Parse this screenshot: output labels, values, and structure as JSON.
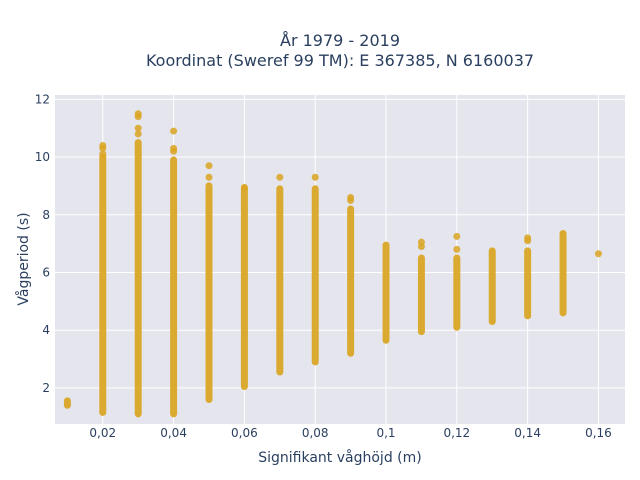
{
  "chart_data": {
    "type": "scatter",
    "title": [
      "År 1979 - 2019",
      "Koordinat (Sweref 99 TM): E 367385, N 6160037"
    ],
    "xlabel": "Signifikant våghöjd (m)",
    "ylabel": "Vågperiod (s)",
    "xlim": [
      0.0065,
      0.1675
    ],
    "ylim": [
      0.75,
      12.15
    ],
    "grid": true,
    "color": "#DAA520",
    "xticks": [
      {
        "value": 0.02,
        "label": "0,02"
      },
      {
        "value": 0.04,
        "label": "0,04"
      },
      {
        "value": 0.06,
        "label": "0,06"
      },
      {
        "value": 0.08,
        "label": "0,08"
      },
      {
        "value": 0.1,
        "label": "0,1"
      },
      {
        "value": 0.12,
        "label": "0,12"
      },
      {
        "value": 0.14,
        "label": "0,14"
      },
      {
        "value": 0.16,
        "label": "0,16"
      }
    ],
    "yticks": [
      {
        "value": 2,
        "label": "2"
      },
      {
        "value": 4,
        "label": "4"
      },
      {
        "value": 6,
        "label": "6"
      },
      {
        "value": 8,
        "label": "8"
      },
      {
        "value": 10,
        "label": "10"
      },
      {
        "value": 12,
        "label": "12"
      }
    ],
    "columns": [
      {
        "x": 0.01,
        "ymin": 1.4,
        "ymax": 1.55,
        "outliers": []
      },
      {
        "x": 0.02,
        "ymin": 1.15,
        "ymax": 10.0,
        "outliers": [
          10.4,
          10.3,
          10.1
        ]
      },
      {
        "x": 0.03,
        "ymin": 1.1,
        "ymax": 10.5,
        "outliers": [
          11.5,
          11.4,
          11.0,
          10.8
        ]
      },
      {
        "x": 0.04,
        "ymin": 1.1,
        "ymax": 9.9,
        "outliers": [
          10.9,
          10.3,
          10.2
        ]
      },
      {
        "x": 0.05,
        "ymin": 1.6,
        "ymax": 9.0,
        "outliers": [
          9.7,
          9.3
        ]
      },
      {
        "x": 0.06,
        "ymin": 2.05,
        "ymax": 8.9,
        "outliers": [
          8.95
        ]
      },
      {
        "x": 0.07,
        "ymin": 2.55,
        "ymax": 8.9,
        "outliers": [
          9.3
        ]
      },
      {
        "x": 0.08,
        "ymin": 2.9,
        "ymax": 8.9,
        "outliers": [
          9.3
        ]
      },
      {
        "x": 0.09,
        "ymin": 3.2,
        "ymax": 8.2,
        "outliers": [
          8.6,
          8.5
        ]
      },
      {
        "x": 0.1,
        "ymin": 3.65,
        "ymax": 6.95,
        "outliers": []
      },
      {
        "x": 0.11,
        "ymin": 3.95,
        "ymax": 6.5,
        "outliers": [
          7.05,
          6.9
        ]
      },
      {
        "x": 0.12,
        "ymin": 4.1,
        "ymax": 6.5,
        "outliers": [
          7.25,
          6.8
        ]
      },
      {
        "x": 0.13,
        "ymin": 4.3,
        "ymax": 6.75,
        "outliers": []
      },
      {
        "x": 0.14,
        "ymin": 4.5,
        "ymax": 6.75,
        "outliers": [
          7.2,
          7.1
        ]
      },
      {
        "x": 0.15,
        "ymin": 4.6,
        "ymax": 7.35,
        "outliers": []
      },
      {
        "x": 0.16,
        "ymin": 6.65,
        "ymax": 6.65,
        "outliers": []
      }
    ]
  }
}
